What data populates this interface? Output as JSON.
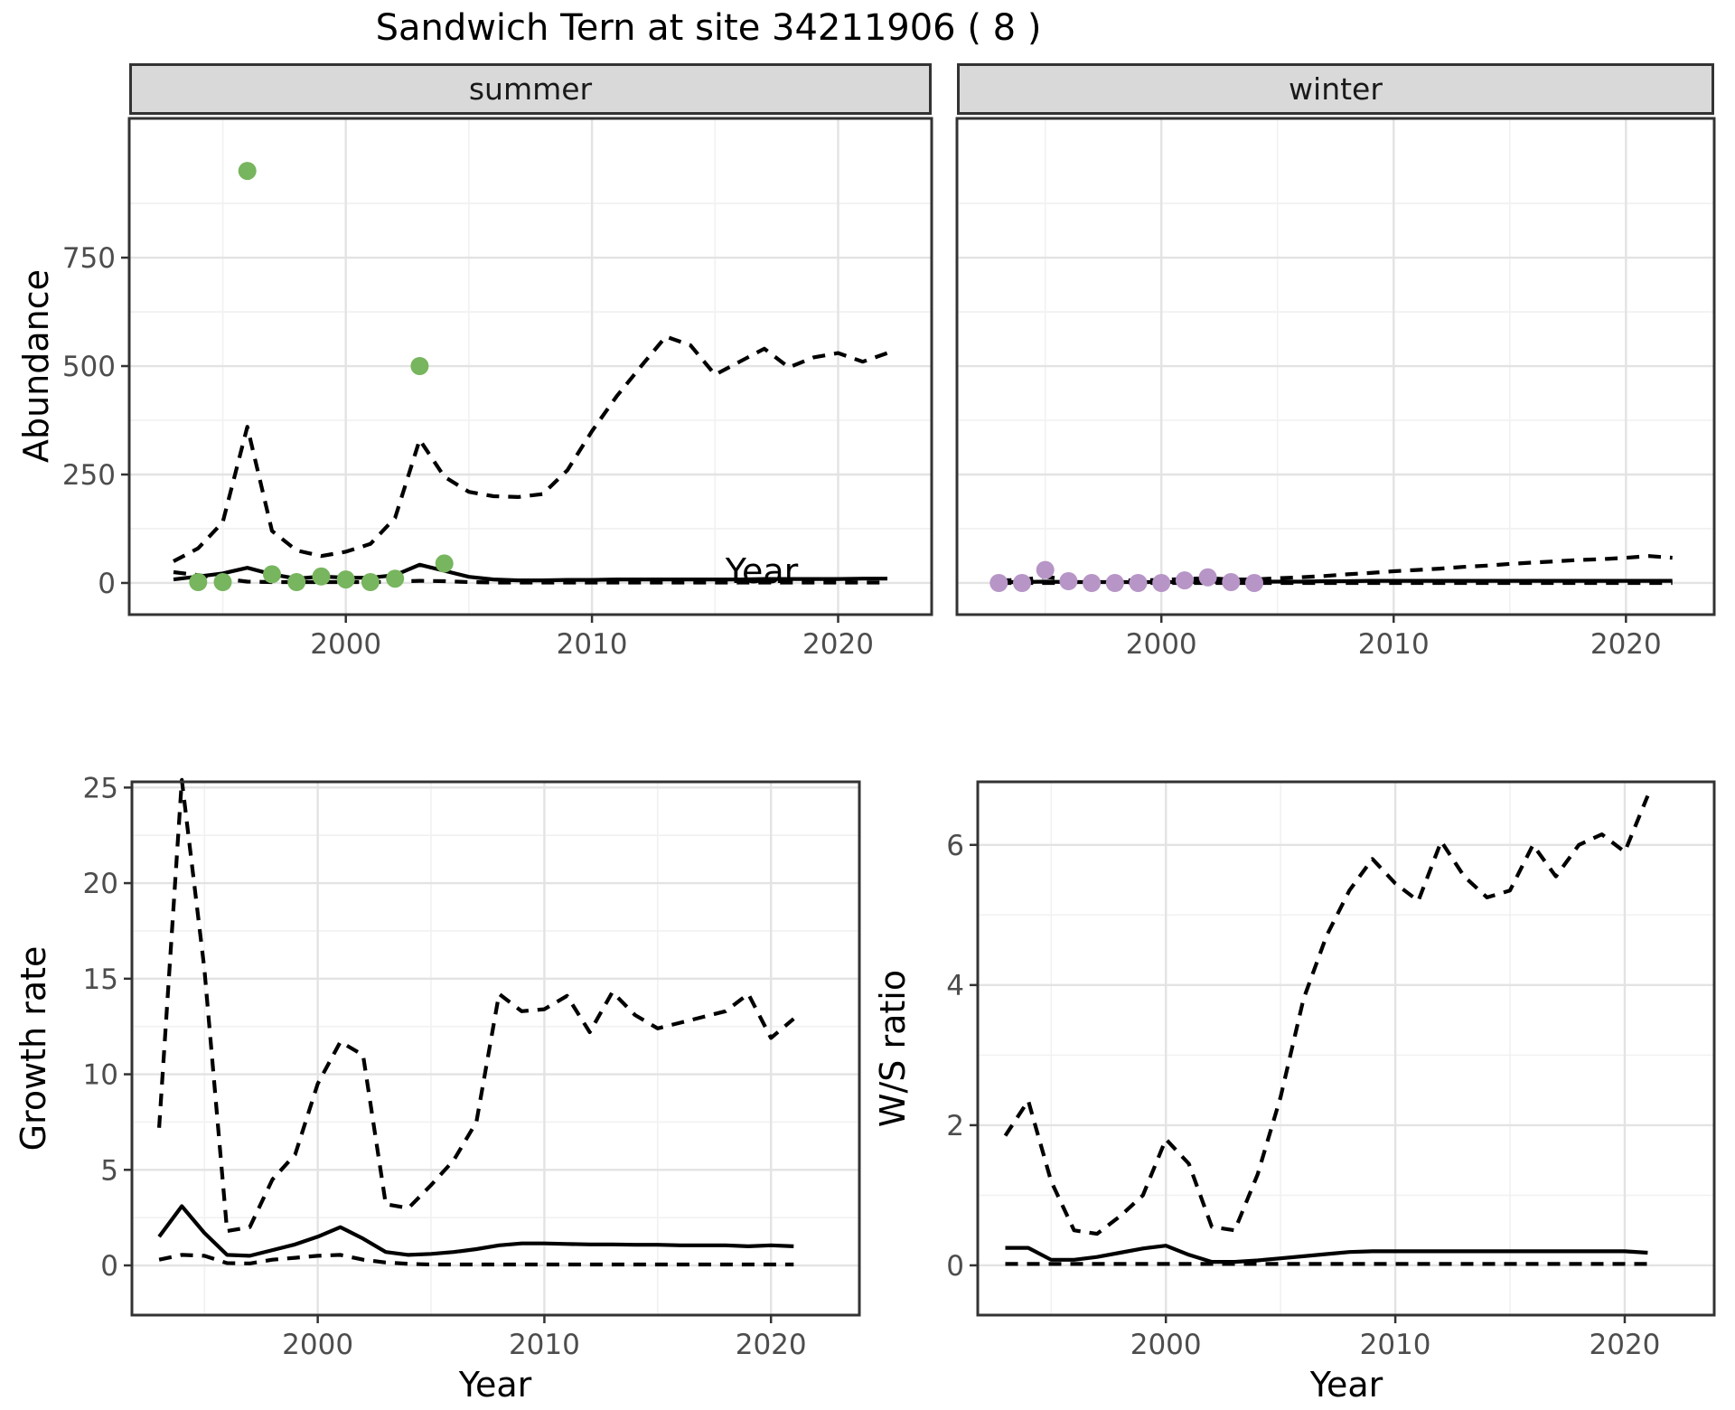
{
  "title": "Sandwich Tern at site 34211906 ( 8 )",
  "colors": {
    "summer_points": "#77b55e",
    "winter_points": "#b795c6",
    "line": "#000000",
    "strip_background": "#d9d9d9",
    "panel_border": "#333333",
    "grid_major": "#e3e3e3",
    "grid_minor": "#f1f1f1",
    "tick_label": "#4d4d4d",
    "panel_background": "#ffffff"
  },
  "chart_data": [
    {
      "id": "abundance",
      "type": "line",
      "xlabel": "Year",
      "ylabel": "Abundance",
      "xticks": [
        2000,
        2010,
        2020
      ],
      "xticks_minor": [
        1995,
        2005,
        2015
      ],
      "yticks": [
        0,
        250,
        500,
        750
      ],
      "yticks_minor": [
        125,
        375,
        625,
        875
      ],
      "xlim": [
        1991.2,
        2023.8
      ],
      "ylim": [
        -73,
        1071
      ],
      "grid": true,
      "legend": "none",
      "facets": [
        {
          "label": "summer",
          "point_color": "#77b55e",
          "line_x": [
            1993,
            1994,
            1995,
            1996,
            1997,
            1998,
            1999,
            2000,
            2001,
            2002,
            2003,
            2004,
            2005,
            2006,
            2007,
            2008,
            2009,
            2010,
            2011,
            2012,
            2013,
            2014,
            2015,
            2016,
            2017,
            2018,
            2019,
            2020,
            2021,
            2022
          ],
          "median": [
            8,
            15,
            22,
            35,
            20,
            10,
            15,
            12,
            12,
            18,
            42,
            28,
            14,
            8,
            6,
            6,
            7,
            7,
            8,
            8,
            8,
            8,
            8,
            8,
            9,
            9,
            9,
            9,
            10,
            10
          ],
          "upper": [
            50,
            80,
            140,
            360,
            120,
            75,
            62,
            72,
            90,
            150,
            330,
            245,
            210,
            200,
            198,
            205,
            260,
            350,
            430,
            500,
            568,
            548,
            480,
            510,
            540,
            497,
            520,
            530,
            510,
            530
          ],
          "lower": [
            25,
            18,
            10,
            3,
            2,
            2,
            2,
            2,
            2,
            3,
            5,
            4,
            2,
            1,
            1,
            1,
            1,
            1,
            1,
            1,
            1,
            1,
            1,
            1,
            1,
            1,
            1,
            1,
            1,
            1
          ],
          "points": {
            "x": [
              1994,
              1995,
              1996,
              1997,
              1998,
              1999,
              2000,
              2001,
              2002,
              2003,
              2004
            ],
            "y": [
              2,
              2,
              950,
              20,
              2,
              15,
              8,
              2,
              10,
              500,
              45
            ]
          }
        },
        {
          "label": "winter",
          "point_color": "#b795c6",
          "line_x": [
            1993,
            1994,
            1995,
            1996,
            1997,
            1998,
            1999,
            2000,
            2001,
            2002,
            2003,
            2004,
            2005,
            2006,
            2007,
            2008,
            2009,
            2010,
            2011,
            2012,
            2013,
            2014,
            2015,
            2016,
            2017,
            2018,
            2019,
            2020,
            2021,
            2022
          ],
          "median": [
            2,
            2,
            3,
            2,
            2,
            2,
            2,
            2,
            2,
            3,
            3,
            3,
            3,
            3,
            4,
            4,
            5,
            5,
            5,
            5,
            5,
            5,
            5,
            5,
            5,
            5,
            5,
            5,
            5,
            5
          ],
          "upper": [
            6,
            7,
            14,
            8,
            6,
            6,
            6,
            7,
            9,
            11,
            8,
            8,
            11,
            13,
            16,
            20,
            23,
            27,
            30,
            33,
            37,
            40,
            44,
            47,
            50,
            53,
            55,
            58,
            62,
            58
          ],
          "lower": [
            0,
            0,
            0,
            0,
            0,
            0,
            0,
            0,
            0,
            0,
            0,
            0,
            0,
            0,
            0,
            0,
            0,
            0,
            0,
            0,
            0,
            0,
            0,
            0,
            0,
            0,
            0,
            0,
            0,
            0
          ],
          "points": {
            "x": [
              1993,
              1994,
              1995,
              1996,
              1997,
              1998,
              1999,
              2000,
              2001,
              2002,
              2003,
              2004
            ],
            "y": [
              0,
              0,
              30,
              4,
              0,
              0,
              0,
              0,
              6,
              13,
              2,
              0
            ]
          }
        }
      ]
    },
    {
      "id": "growth_rate",
      "type": "line",
      "xlabel": "Year",
      "ylabel": "Growth rate",
      "xticks": [
        2000,
        2010,
        2020
      ],
      "xticks_minor": [
        1995,
        2005,
        2015
      ],
      "yticks": [
        0,
        5,
        10,
        15,
        20,
        25
      ],
      "yticks_minor": [
        2.5,
        7.5,
        12.5,
        17.5,
        22.5
      ],
      "xlim": [
        1991.8,
        2023.9
      ],
      "ylim": [
        -2.6,
        25.3
      ],
      "grid": true,
      "legend": "none",
      "line_x": [
        1993,
        1994,
        1995,
        1996,
        1997,
        1998,
        1999,
        2000,
        2001,
        2002,
        2003,
        2004,
        2005,
        2006,
        2007,
        2008,
        2009,
        2010,
        2011,
        2012,
        2013,
        2014,
        2015,
        2016,
        2017,
        2018,
        2019,
        2020,
        2021
      ],
      "median": [
        1.5,
        3.1,
        1.7,
        0.55,
        0.5,
        0.8,
        1.1,
        1.5,
        2.0,
        1.4,
        0.7,
        0.55,
        0.6,
        0.7,
        0.85,
        1.05,
        1.15,
        1.15,
        1.12,
        1.1,
        1.1,
        1.08,
        1.08,
        1.05,
        1.05,
        1.05,
        1.0,
        1.05,
        1.0
      ],
      "upper": [
        7.2,
        25.4,
        15.5,
        1.8,
        2.0,
        4.5,
        5.8,
        9.5,
        11.7,
        11.0,
        3.2,
        3.0,
        4.2,
        5.5,
        7.5,
        14.2,
        13.3,
        13.4,
        14.1,
        12.2,
        14.3,
        13.1,
        12.4,
        12.7,
        13.0,
        13.3,
        14.2,
        11.9,
        12.9
      ],
      "lower": [
        0.3,
        0.55,
        0.5,
        0.12,
        0.1,
        0.3,
        0.4,
        0.5,
        0.55,
        0.3,
        0.15,
        0.08,
        0.05,
        0.05,
        0.05,
        0.05,
        0.05,
        0.05,
        0.05,
        0.05,
        0.05,
        0.05,
        0.05,
        0.05,
        0.05,
        0.05,
        0.05,
        0.05,
        0.05
      ]
    },
    {
      "id": "ws_ratio",
      "type": "line",
      "xlabel": "Year",
      "ylabel": "W/S ratio",
      "xticks": [
        2000,
        2010,
        2020
      ],
      "xticks_minor": [
        1995,
        2005,
        2015
      ],
      "yticks": [
        0,
        2,
        4,
        6
      ],
      "yticks_minor": [
        1,
        3,
        5
      ],
      "xlim": [
        1991.8,
        2023.9
      ],
      "ylim": [
        -0.71,
        6.9
      ],
      "grid": true,
      "legend": "none",
      "line_x": [
        1993,
        1994,
        1995,
        1996,
        1997,
        1998,
        1999,
        2000,
        2001,
        2002,
        2003,
        2004,
        2005,
        2006,
        2007,
        2008,
        2009,
        2010,
        2011,
        2012,
        2013,
        2014,
        2015,
        2016,
        2017,
        2018,
        2019,
        2020,
        2021
      ],
      "median": [
        0.25,
        0.25,
        0.08,
        0.08,
        0.12,
        0.18,
        0.24,
        0.28,
        0.15,
        0.05,
        0.05,
        0.07,
        0.1,
        0.13,
        0.16,
        0.19,
        0.2,
        0.2,
        0.2,
        0.2,
        0.2,
        0.2,
        0.2,
        0.2,
        0.2,
        0.2,
        0.2,
        0.2,
        0.18
      ],
      "upper": [
        1.85,
        2.35,
        1.2,
        0.5,
        0.45,
        0.7,
        1.0,
        1.8,
        1.45,
        0.55,
        0.5,
        1.3,
        2.4,
        3.8,
        4.7,
        5.35,
        5.8,
        5.45,
        5.2,
        6.05,
        5.55,
        5.25,
        5.35,
        6.0,
        5.55,
        6.0,
        6.15,
        5.9,
        6.7
      ],
      "lower": [
        0.02,
        0.02,
        0.02,
        0.02,
        0.02,
        0.02,
        0.02,
        0.02,
        0.02,
        0.02,
        0.02,
        0.02,
        0.02,
        0.02,
        0.02,
        0.02,
        0.02,
        0.02,
        0.02,
        0.02,
        0.02,
        0.02,
        0.02,
        0.02,
        0.02,
        0.02,
        0.02,
        0.02,
        0.02
      ]
    }
  ]
}
